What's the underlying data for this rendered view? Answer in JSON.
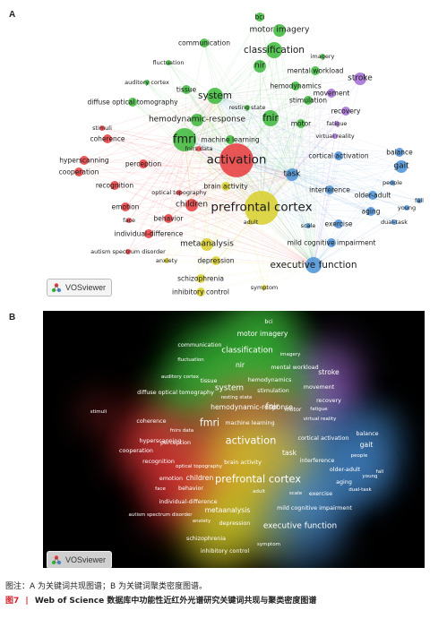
{
  "panel_labels": {
    "a": "A",
    "b": "B"
  },
  "logo_text": "VOSviewer",
  "caption": {
    "note": "图注：A 为关键词共现图谱；B 为关键词聚类密度图谱。",
    "fig": "图7",
    "sep": "|",
    "title": "Web of Science 数据库中功能性近红外光谱研究关键词共现与聚类密度图谱"
  },
  "cluster_colors": {
    "red": "#e8393c",
    "green": "#3cb93a",
    "blue": "#4a90d6",
    "yellow": "#d8cf2a",
    "purple": "#a26ad4",
    "cyan": "#3fc3c7"
  },
  "terms": [
    {
      "t": "bci",
      "c": "green",
      "s": 2
    },
    {
      "t": "motor imagery",
      "c": "green",
      "s": 3
    },
    {
      "t": "communication",
      "c": "green",
      "s": 2
    },
    {
      "t": "classification",
      "c": "green",
      "s": 4
    },
    {
      "t": "imagery",
      "c": "green",
      "s": 1
    },
    {
      "t": "fluctuation",
      "c": "green",
      "s": 1
    },
    {
      "t": "nir",
      "c": "green",
      "s": 3
    },
    {
      "t": "mental workload",
      "c": "green",
      "s": 2
    },
    {
      "t": "auditory cortex",
      "c": "green",
      "s": 1
    },
    {
      "t": "tissue",
      "c": "green",
      "s": 2
    },
    {
      "t": "hemodynamics",
      "c": "green",
      "s": 2
    },
    {
      "t": "stroke",
      "c": "purple",
      "s": 3
    },
    {
      "t": "diffuse optical tomography",
      "c": "green",
      "s": 2
    },
    {
      "t": "system",
      "c": "green",
      "s": 4
    },
    {
      "t": "resting state",
      "c": "green",
      "s": 1
    },
    {
      "t": "stimulation",
      "c": "green",
      "s": 2
    },
    {
      "t": "movement",
      "c": "purple",
      "s": 2
    },
    {
      "t": "recovery",
      "c": "purple",
      "s": 2
    },
    {
      "t": "hemodynamic-response",
      "c": "green",
      "s": 3
    },
    {
      "t": "fnir",
      "c": "green",
      "s": 4
    },
    {
      "t": "motor",
      "c": "green",
      "s": 2
    },
    {
      "t": "fatigue",
      "c": "purple",
      "s": 1
    },
    {
      "t": "stimuli",
      "c": "red",
      "s": 1
    },
    {
      "t": "coherence",
      "c": "red",
      "s": 2
    },
    {
      "t": "fmri",
      "c": "green",
      "s": 5
    },
    {
      "t": "machine learning",
      "c": "green",
      "s": 2
    },
    {
      "t": "virtual reality",
      "c": "purple",
      "s": 1
    },
    {
      "t": "fnirs data",
      "c": "red",
      "s": 1
    },
    {
      "t": "balance",
      "c": "blue",
      "s": 2
    },
    {
      "t": "hyperscanning",
      "c": "red",
      "s": 2
    },
    {
      "t": "activation",
      "c": "red",
      "s": 6
    },
    {
      "t": "cortical activation",
      "c": "blue",
      "s": 2
    },
    {
      "t": "perception",
      "c": "red",
      "s": 2
    },
    {
      "t": "gait",
      "c": "blue",
      "s": 3
    },
    {
      "t": "cooperation",
      "c": "red",
      "s": 2
    },
    {
      "t": "task",
      "c": "blue",
      "s": 3
    },
    {
      "t": "recognition",
      "c": "red",
      "s": 2
    },
    {
      "t": "brain activity",
      "c": "yellow",
      "s": 2
    },
    {
      "t": "interference",
      "c": "blue",
      "s": 2
    },
    {
      "t": "people",
      "c": "blue",
      "s": 1
    },
    {
      "t": "optical topography",
      "c": "red",
      "s": 1
    },
    {
      "t": "older-adult",
      "c": "blue",
      "s": 2
    },
    {
      "t": "fall",
      "c": "blue",
      "s": 1
    },
    {
      "t": "emotion",
      "c": "red",
      "s": 2
    },
    {
      "t": "children",
      "c": "red",
      "s": 3
    },
    {
      "t": "prefrontal cortex",
      "c": "yellow",
      "s": 6
    },
    {
      "t": "young",
      "c": "blue",
      "s": 1
    },
    {
      "t": "aging",
      "c": "blue",
      "s": 2
    },
    {
      "t": "face",
      "c": "red",
      "s": 1
    },
    {
      "t": "behavior",
      "c": "red",
      "s": 2
    },
    {
      "t": "adult",
      "c": "yellow",
      "s": 1
    },
    {
      "t": "scale",
      "c": "blue",
      "s": 1
    },
    {
      "t": "exercise",
      "c": "blue",
      "s": 2
    },
    {
      "t": "dual-task",
      "c": "blue",
      "s": 1
    },
    {
      "t": "individual-difference",
      "c": "red",
      "s": 2
    },
    {
      "t": "metaanalysis",
      "c": "yellow",
      "s": 3
    },
    {
      "t": "mild cognitive impairment",
      "c": "blue",
      "s": 2
    },
    {
      "t": "autism spectrum disorder",
      "c": "red",
      "s": 1
    },
    {
      "t": "anxiety",
      "c": "yellow",
      "s": 1
    },
    {
      "t": "depression",
      "c": "yellow",
      "s": 2
    },
    {
      "t": "executive function",
      "c": "blue",
      "s": 4
    },
    {
      "t": "schizophrenia",
      "c": "yellow",
      "s": 2
    },
    {
      "t": "symptom",
      "c": "yellow",
      "s": 1
    },
    {
      "t": "inhibitory control",
      "c": "yellow",
      "s": 2
    }
  ]
}
